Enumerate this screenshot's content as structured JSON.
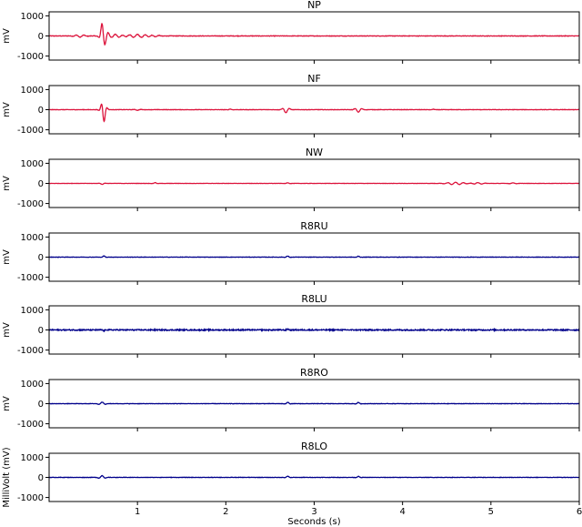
{
  "chart_data": {
    "type": "line",
    "xlabel": "Seconds (s)",
    "xlim": [
      0,
      6
    ],
    "xticks": [
      1,
      2,
      3,
      4,
      5,
      6
    ],
    "ylim": [
      -1200,
      1200
    ],
    "yticks": [
      1000,
      0,
      -1000
    ],
    "ylabel_bottom": "MilliVolt (mV)",
    "panels": [
      {
        "title": "NP",
        "ylabel": "mV",
        "color": "#dc143c",
        "noise": 12,
        "events": [
          [
            0.35,
            -60,
            0.05
          ],
          [
            0.6,
            500,
            0.02
          ],
          [
            0.63,
            -350,
            0.03
          ],
          [
            0.75,
            80,
            0.06
          ],
          [
            1.0,
            80,
            0.1
          ],
          [
            1.2,
            -40,
            0.05
          ]
        ]
      },
      {
        "title": "NF",
        "ylabel": "mV",
        "color": "#dc143c",
        "noise": 8,
        "events": [
          [
            0.6,
            250,
            0.02
          ],
          [
            0.62,
            -600,
            0.02
          ],
          [
            1.0,
            -30,
            0.03
          ],
          [
            2.05,
            30,
            0.02
          ],
          [
            2.68,
            -150,
            0.03
          ],
          [
            3.5,
            -120,
            0.03
          ],
          [
            4.35,
            20,
            0.02
          ]
        ]
      },
      {
        "title": "NW",
        "ylabel": "mV",
        "color": "#dc143c",
        "noise": 6,
        "events": [
          [
            0.6,
            -50,
            0.02
          ],
          [
            1.2,
            40,
            0.02
          ],
          [
            2.7,
            30,
            0.02
          ],
          [
            4.6,
            60,
            0.08
          ],
          [
            4.85,
            40,
            0.05
          ],
          [
            5.25,
            30,
            0.03
          ]
        ]
      },
      {
        "title": "R8RU",
        "ylabel": "mV",
        "color": "#00008b",
        "noise": 8,
        "events": [
          [
            0.62,
            60,
            0.02
          ],
          [
            2.7,
            50,
            0.02
          ],
          [
            3.5,
            45,
            0.02
          ]
        ]
      },
      {
        "title": "R8LU",
        "ylabel": "mV",
        "color": "#00008b",
        "noise": 28,
        "events": [
          [
            0.62,
            -40,
            0.02
          ],
          [
            2.7,
            40,
            0.02
          ]
        ]
      },
      {
        "title": "R8RO",
        "ylabel": "mV",
        "color": "#00008b",
        "noise": 8,
        "events": [
          [
            0.6,
            80,
            0.03
          ],
          [
            2.7,
            70,
            0.02
          ],
          [
            3.5,
            60,
            0.02
          ]
        ]
      },
      {
        "title": "R8LO",
        "ylabel": "MilliVolt (mV)",
        "color": "#00008b",
        "noise": 8,
        "events": [
          [
            0.6,
            90,
            0.03
          ],
          [
            2.7,
            60,
            0.02
          ],
          [
            3.5,
            50,
            0.02
          ]
        ]
      }
    ]
  }
}
